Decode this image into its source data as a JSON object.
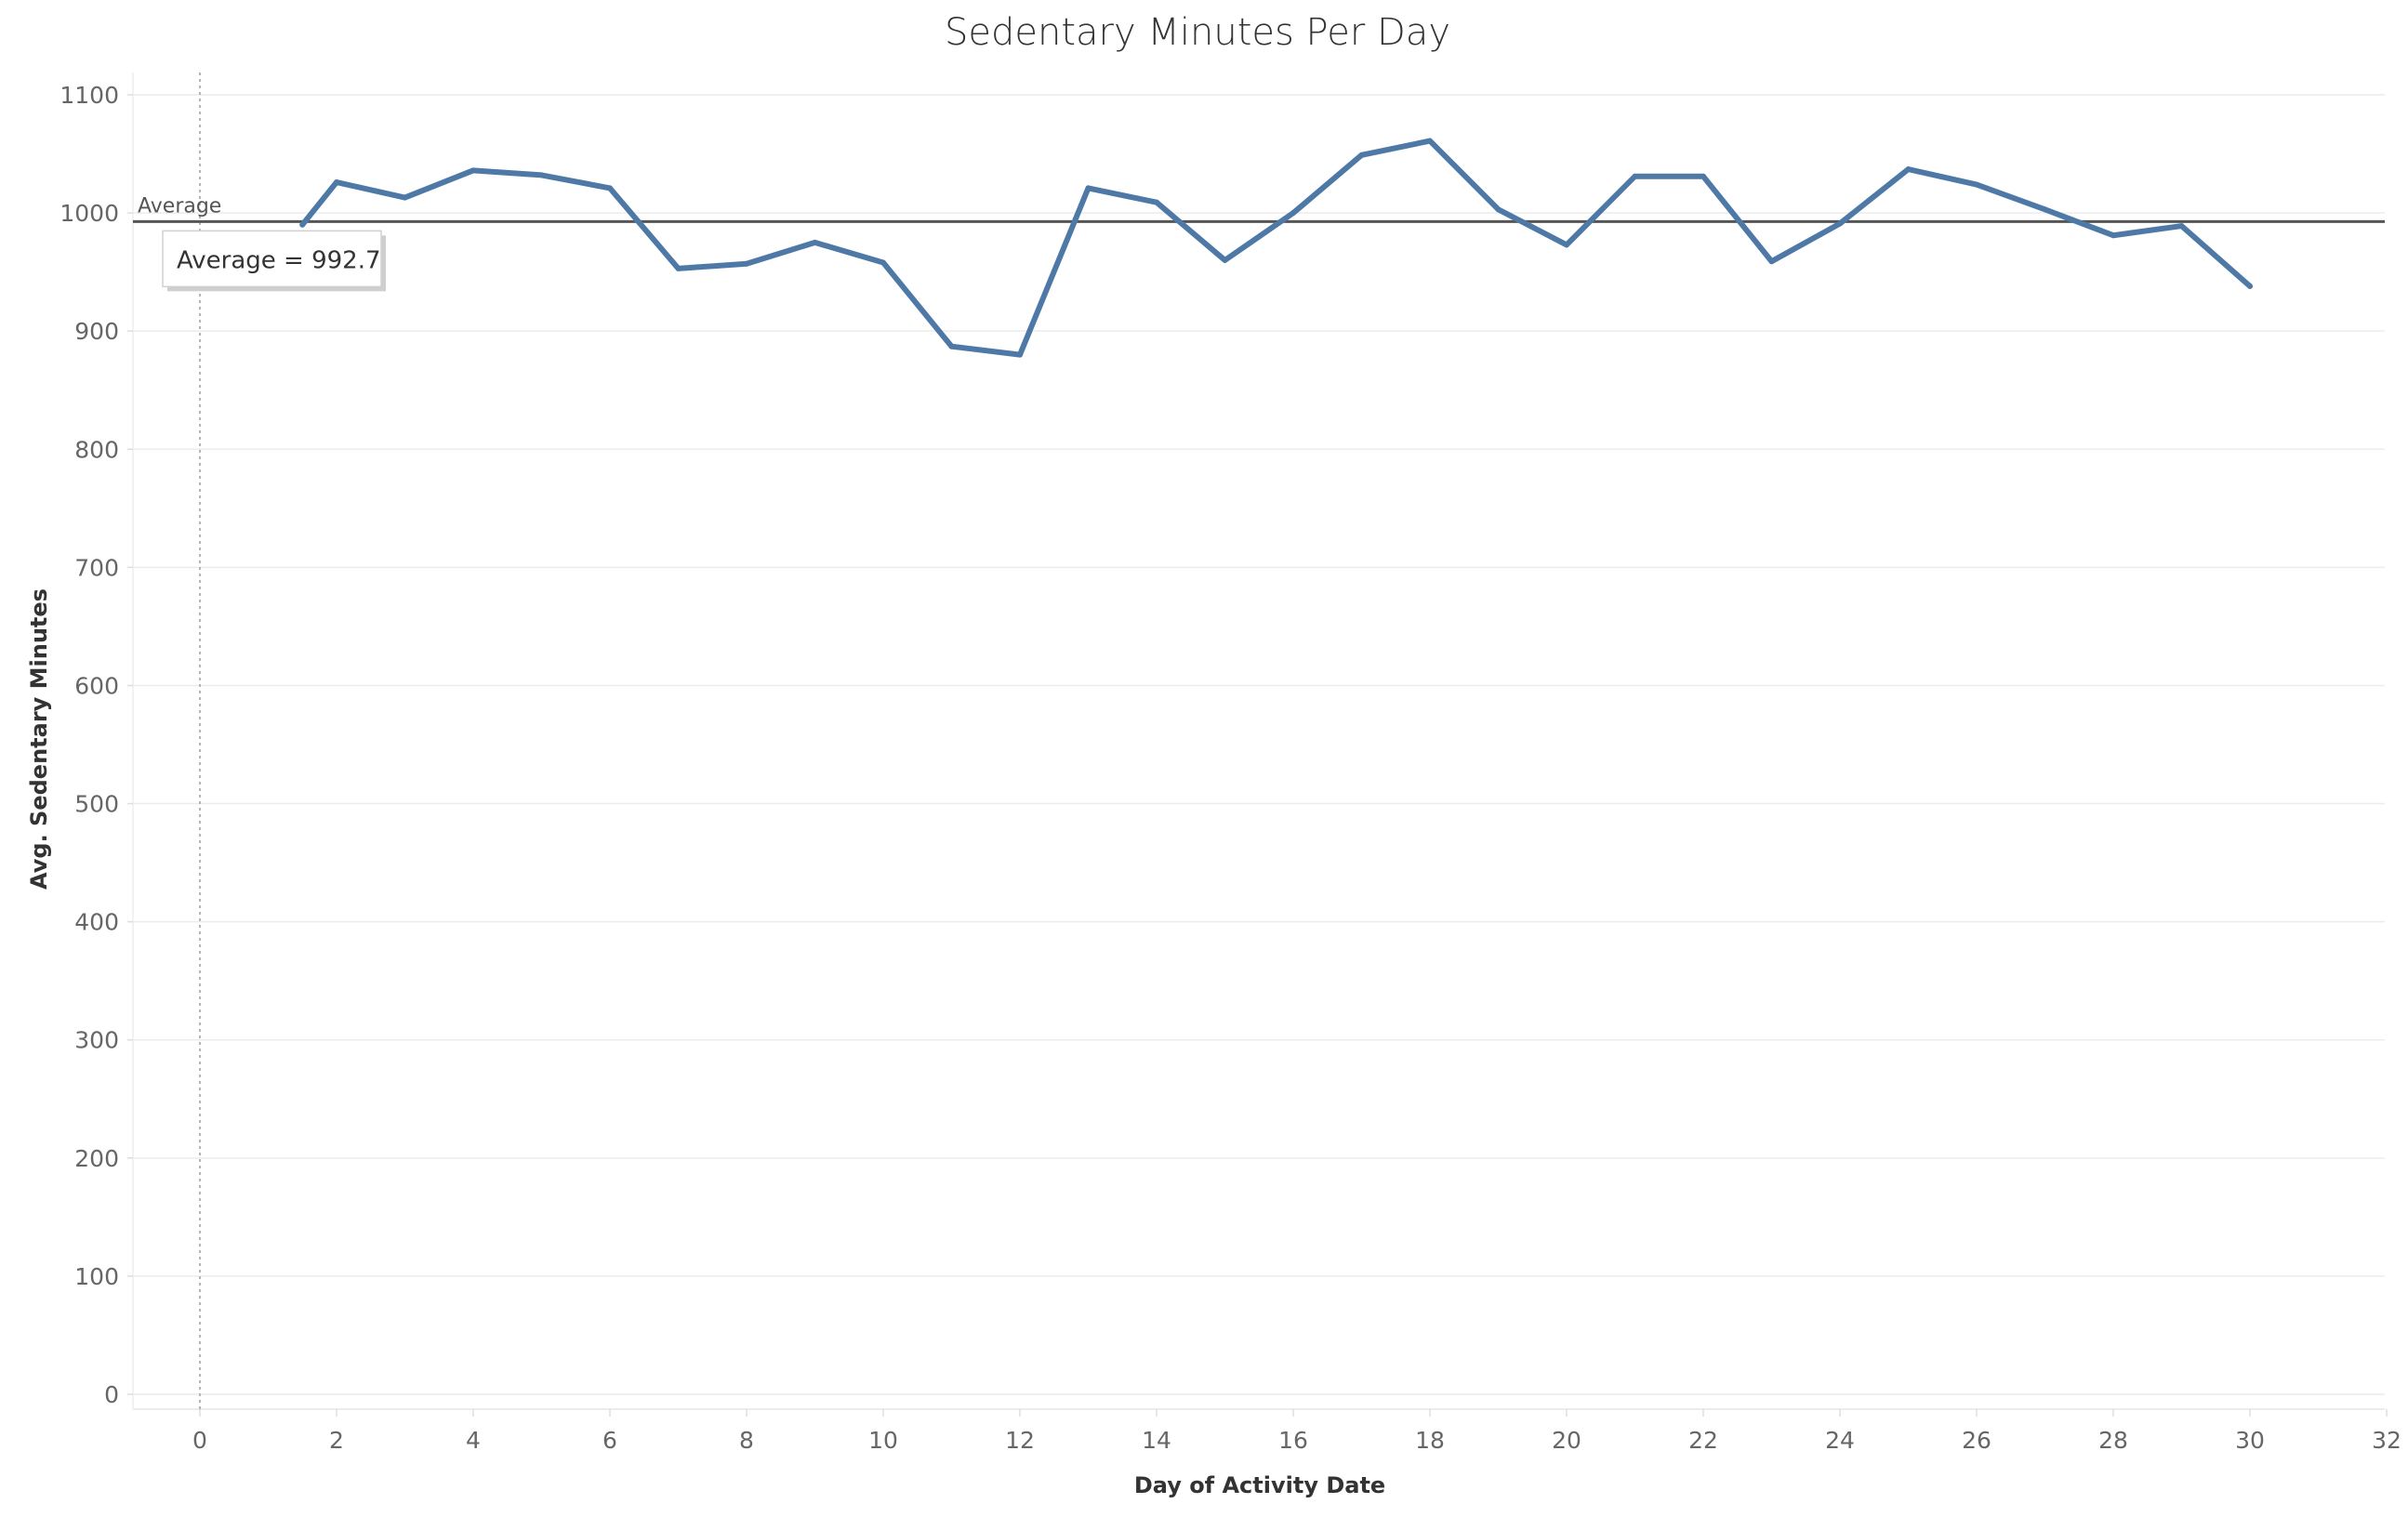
{
  "chart_data": {
    "type": "line",
    "title": "Sedentary Minutes Per Day",
    "xlabel": "Day of Activity Date",
    "ylabel": "Avg. Sedentary Minutes",
    "xlim": [
      -1,
      32
    ],
    "ylim": [
      0,
      1100
    ],
    "x_ticks": [
      0,
      2,
      4,
      6,
      8,
      10,
      12,
      14,
      16,
      18,
      20,
      22,
      24,
      26,
      28,
      30,
      32
    ],
    "y_ticks": [
      0,
      100,
      200,
      300,
      400,
      500,
      600,
      700,
      800,
      900,
      1000,
      1100
    ],
    "grid": true,
    "line_color": "#4e79a7",
    "reference_line": {
      "label": "Average",
      "value": 992.7,
      "annotation": "Average = 992.7",
      "color": "#555555"
    },
    "zero_line_style": "dotted",
    "series": [
      {
        "x": [
          1.5,
          2,
          3,
          4,
          5,
          6,
          7,
          8,
          9,
          10,
          11,
          12,
          13,
          14,
          15,
          16,
          17,
          18,
          19,
          20,
          21,
          22,
          23,
          24,
          25,
          26,
          27,
          28,
          29,
          30
        ],
        "values": [
          990,
          1026,
          1013,
          1036,
          1032,
          1021,
          953,
          957,
          975,
          958,
          887,
          880,
          1021,
          1009,
          960,
          1000,
          1049,
          1061,
          1003,
          973,
          1031,
          1031,
          959,
          991,
          1037,
          1024,
          1003,
          981,
          989,
          938
        ]
      }
    ]
  }
}
